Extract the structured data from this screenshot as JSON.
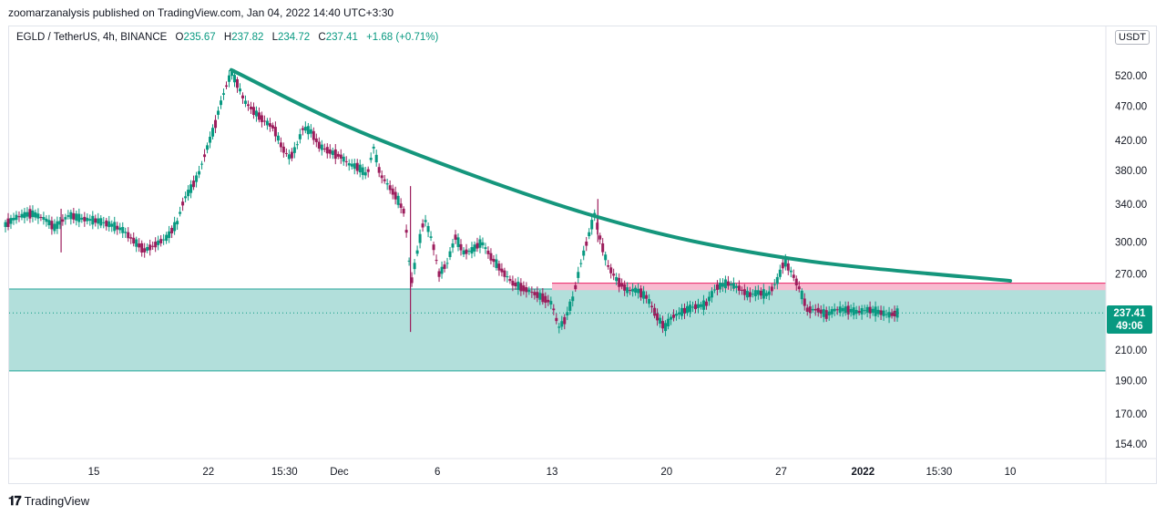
{
  "header": {
    "published": "zoomarzanalysis published on TradingView.com, Jan 04, 2022 14:40 UTC+3:30"
  },
  "legend": {
    "symbol": "EGLD / TetherUS, 4h, BINANCE",
    "open_label": "O",
    "open": "235.67",
    "high_label": "H",
    "high": "237.82",
    "low_label": "L",
    "low": "234.72",
    "close_label": "C",
    "close": "237.41",
    "change": "+1.68 (+0.71%)"
  },
  "currency_button": "USDT",
  "last_price": {
    "value": "237.41",
    "countdown": "49:06"
  },
  "brand": {
    "name": "TradingView"
  },
  "colors": {
    "up": "#089981",
    "down": "#9c1d5c",
    "zone": "#b2dfdb",
    "resistance": "#f8bbd0",
    "trendline": "#15967c"
  },
  "chart_data": {
    "type": "candlestick",
    "scale": "log",
    "y_ticks": [
      154,
      170,
      190,
      210,
      270,
      300,
      340,
      380,
      420,
      470,
      520
    ],
    "y_tick_labels": [
      "154.00",
      "170.00",
      "190.00",
      "210.00",
      "270.00",
      "300.00",
      "340.00",
      "380.00",
      "420.00",
      "470.00",
      "520.00"
    ],
    "x_tick_labels": [
      "15",
      "22",
      "15:30",
      "Dec",
      "6",
      "13",
      "20",
      "27",
      "2022",
      "15:30",
      "10"
    ],
    "x_ticks_day": [
      15,
      22,
      26.65,
      30,
      36,
      43,
      50,
      57,
      62,
      66.65,
      71
    ],
    "x_range_day": [
      9.5,
      77
    ],
    "price_series": [
      [
        9.6,
        318
      ],
      [
        10.3,
        326
      ],
      [
        11.2,
        330
      ],
      [
        12,
        324
      ],
      [
        12.6,
        315
      ],
      [
        13.5,
        328
      ],
      [
        14.3,
        324
      ],
      [
        15.2,
        322
      ],
      [
        16,
        318
      ],
      [
        16.8,
        312
      ],
      [
        17.4,
        302
      ],
      [
        18.1,
        292
      ],
      [
        18.8,
        298
      ],
      [
        19.5,
        305
      ],
      [
        20.1,
        320
      ],
      [
        20.5,
        345
      ],
      [
        21,
        360
      ],
      [
        21.4,
        375
      ],
      [
        21.9,
        408
      ],
      [
        22.4,
        440
      ],
      [
        22.7,
        470
      ],
      [
        23,
        495
      ],
      [
        23.4,
        525
      ],
      [
        23.8,
        505
      ],
      [
        24.2,
        478
      ],
      [
        24.8,
        462
      ],
      [
        25.4,
        448
      ],
      [
        26,
        438
      ],
      [
        26.5,
        410
      ],
      [
        27,
        396
      ],
      [
        27.4,
        412
      ],
      [
        27.8,
        438
      ],
      [
        28.3,
        432
      ],
      [
        28.8,
        412
      ],
      [
        29.4,
        405
      ],
      [
        30.1,
        398
      ],
      [
        30.6,
        388
      ],
      [
        31.2,
        384
      ],
      [
        31.7,
        374
      ],
      [
        32.1,
        410
      ],
      [
        32.5,
        375
      ],
      [
        33,
        362
      ],
      [
        33.5,
        348
      ],
      [
        34,
        330
      ],
      [
        34.2,
        292
      ],
      [
        34.4,
        262
      ],
      [
        34.7,
        285
      ],
      [
        35.2,
        325
      ],
      [
        35.7,
        300
      ],
      [
        36.1,
        270
      ],
      [
        36.6,
        280
      ],
      [
        37.1,
        305
      ],
      [
        37.6,
        290
      ],
      [
        38.1,
        292
      ],
      [
        38.7,
        300
      ],
      [
        39.3,
        285
      ],
      [
        40,
        272
      ],
      [
        40.6,
        262
      ],
      [
        41.2,
        258
      ],
      [
        41.8,
        254
      ],
      [
        42.4,
        250
      ],
      [
        43,
        245
      ],
      [
        43.4,
        226
      ],
      [
        43.8,
        232
      ],
      [
        44.3,
        250
      ],
      [
        44.8,
        282
      ],
      [
        45.2,
        304
      ],
      [
        45.6,
        328
      ],
      [
        46,
        300
      ],
      [
        46.4,
        278
      ],
      [
        47,
        264
      ],
      [
        47.6,
        256
      ],
      [
        48.2,
        256
      ],
      [
        48.8,
        250
      ],
      [
        49.4,
        235
      ],
      [
        49.9,
        226
      ],
      [
        50.3,
        234
      ],
      [
        50.9,
        238
      ],
      [
        51.6,
        242
      ],
      [
        52.4,
        244
      ],
      [
        53,
        258
      ],
      [
        53.7,
        262
      ],
      [
        54.4,
        258
      ],
      [
        55,
        252
      ],
      [
        55.6,
        254
      ],
      [
        56.2,
        252
      ],
      [
        56.8,
        265
      ],
      [
        57.2,
        282
      ],
      [
        57.7,
        270
      ],
      [
        58.1,
        258
      ],
      [
        58.6,
        240
      ],
      [
        59.2,
        240
      ],
      [
        59.8,
        236
      ],
      [
        60.3,
        240
      ],
      [
        61,
        240
      ],
      [
        61.7,
        238
      ],
      [
        62.3,
        240
      ],
      [
        63,
        238
      ],
      [
        63.6,
        236
      ],
      [
        64.1,
        237.41
      ]
    ],
    "down_day_ranges": [
      [
        17.0,
        19.0
      ],
      [
        24.0,
        26.8
      ],
      [
        28.6,
        30.4
      ],
      [
        32.2,
        34.6
      ],
      [
        35.6,
        36.3
      ],
      [
        37.3,
        37.9
      ],
      [
        38.8,
        43.3
      ],
      [
        45.7,
        47.7
      ],
      [
        48.6,
        49.9
      ],
      [
        54.4,
        55.2
      ],
      [
        57.3,
        59.9
      ],
      [
        63.5,
        64.0
      ]
    ],
    "wicks": [
      [
        34.35,
        361,
        223
      ],
      [
        45.8,
        346,
        300
      ],
      [
        13.0,
        335,
        290
      ]
    ],
    "support_zone": {
      "low": 196,
      "high": 257
    },
    "resistance_zone": {
      "low": 256,
      "high": 262
    },
    "trendline": {
      "points": [
        [
          23.4,
          530
        ],
        [
          32,
          425
        ],
        [
          45.6,
          327
        ],
        [
          57.2,
          285
        ],
        [
          71,
          264
        ]
      ]
    },
    "price_line": 237.41
  }
}
